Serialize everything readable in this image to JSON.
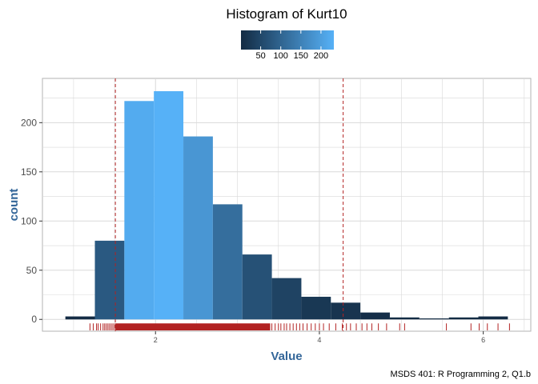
{
  "chart_data": {
    "type": "bar",
    "title": "Histogram of Kurt10",
    "xlabel": "Value",
    "ylabel": "count",
    "caption": "MSDS 401: R Programming 2, Q1.b",
    "bin_width": 0.36,
    "bins": [
      {
        "x0": 0.9,
        "x1": 1.26,
        "count": 3
      },
      {
        "x0": 1.26,
        "x1": 1.62,
        "count": 80
      },
      {
        "x0": 1.62,
        "x1": 1.98,
        "count": 222
      },
      {
        "x0": 1.98,
        "x1": 2.34,
        "count": 232
      },
      {
        "x0": 2.34,
        "x1": 2.7,
        "count": 186
      },
      {
        "x0": 2.7,
        "x1": 3.06,
        "count": 117
      },
      {
        "x0": 3.06,
        "x1": 3.42,
        "count": 66
      },
      {
        "x0": 3.42,
        "x1": 3.78,
        "count": 42
      },
      {
        "x0": 3.78,
        "x1": 4.14,
        "count": 23
      },
      {
        "x0": 4.14,
        "x1": 4.5,
        "count": 17
      },
      {
        "x0": 4.5,
        "x1": 4.86,
        "count": 7
      },
      {
        "x0": 4.86,
        "x1": 5.22,
        "count": 2
      },
      {
        "x0": 5.22,
        "x1": 5.58,
        "count": 1
      },
      {
        "x0": 5.58,
        "x1": 5.94,
        "count": 2
      },
      {
        "x0": 5.94,
        "x1": 6.3,
        "count": 3
      }
    ],
    "xlim": [
      0.62,
      6.58
    ],
    "ylim": [
      -12,
      245
    ],
    "x_ticks": [
      2,
      4,
      6
    ],
    "y_ticks": [
      0,
      50,
      100,
      150,
      200
    ],
    "vlines": [
      1.51,
      4.29
    ],
    "vline_color": "#b22222",
    "rug_color": "#b22222",
    "rug_dense_range": [
      1.51,
      3.4
    ],
    "rug_values": [
      1.2,
      1.24,
      1.28,
      1.3,
      1.33,
      1.36,
      1.38,
      1.4,
      1.42,
      1.44,
      1.46,
      1.48,
      1.5,
      3.42,
      3.46,
      3.5,
      3.53,
      3.57,
      3.6,
      3.64,
      3.68,
      3.72,
      3.76,
      3.8,
      3.85,
      3.9,
      3.95,
      4.0,
      4.05,
      4.12,
      4.2,
      4.28,
      4.33,
      4.38,
      4.45,
      4.52,
      4.58,
      4.64,
      4.72,
      4.82,
      4.98,
      5.04,
      5.55,
      5.85,
      5.95,
      6.05,
      6.18,
      6.32
    ],
    "fill_scale": {
      "low": "#132b43",
      "high": "#56b1f7",
      "min": 1,
      "max": 232
    },
    "legend": {
      "position": "top",
      "breaks": [
        50,
        100,
        150,
        200
      ]
    },
    "grid": true
  }
}
